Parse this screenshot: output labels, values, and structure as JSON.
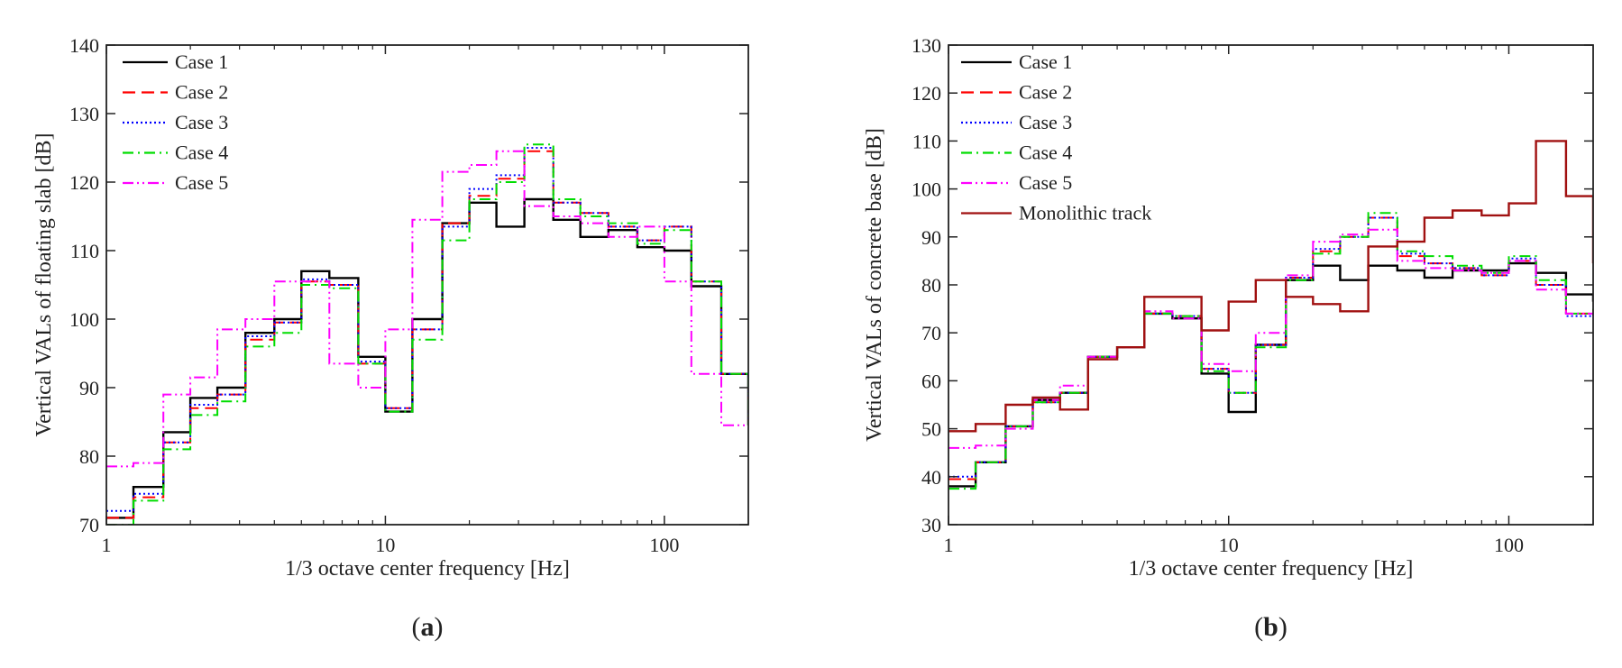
{
  "chart_data": [
    {
      "panel": "a",
      "caption": "(a)",
      "caption_letter": "a",
      "type": "line",
      "step": true,
      "xscale": "log",
      "xlabel": "1/3 octave center frequency [Hz]",
      "ylabel": "Vertical VALs of floating slab [dB]",
      "xlim": [
        1,
        200
      ],
      "ylim": [
        70,
        140
      ],
      "xticks": [
        1,
        10,
        100
      ],
      "xtick_labels": [
        "1",
        "10",
        "100"
      ],
      "yticks": [
        70,
        80,
        90,
        100,
        110,
        120,
        130,
        140
      ],
      "ytick_labels": [
        "70",
        "80",
        "90",
        "100",
        "110",
        "120",
        "130",
        "140"
      ],
      "legend_position": "top-left",
      "x": [
        1,
        1.25,
        1.6,
        2,
        2.5,
        3.15,
        4,
        5,
        6.3,
        8,
        10,
        12.5,
        16,
        20,
        25,
        31.5,
        40,
        50,
        63,
        80,
        100,
        125,
        160,
        200
      ],
      "series": [
        {
          "name": "Case 1",
          "color": "#000000",
          "dash": "solid",
          "values": [
            71,
            75.5,
            83.5,
            88.5,
            90,
            98,
            100,
            107,
            106,
            94.5,
            86.5,
            100,
            114,
            117,
            113.5,
            117.5,
            114.5,
            112,
            113,
            110.5,
            110,
            104.8,
            92,
            84.5
          ]
        },
        {
          "name": "Case 2",
          "color": "#ff0000",
          "dash": "dashed",
          "values": [
            71,
            74,
            82,
            87,
            89,
            97,
            99.5,
            105.5,
            105,
            93.5,
            87,
            98.5,
            114,
            118,
            120.5,
            124.5,
            117,
            115.5,
            113.5,
            111.5,
            113.5,
            105.5,
            92,
            84.5
          ]
        },
        {
          "name": "Case 3",
          "color": "#0000ff",
          "dash": "dotted",
          "values": [
            72,
            74.5,
            82,
            87.5,
            89,
            97.5,
            99.5,
            105.8,
            105,
            93.8,
            87,
            98.5,
            113.5,
            119,
            121,
            125,
            117,
            115.5,
            113.5,
            111.5,
            113.5,
            105.5,
            92,
            84.5
          ]
        },
        {
          "name": "Case 4",
          "color": "#00dd00",
          "dash": "dashdot",
          "values": [
            70,
            73.5,
            81,
            86,
            88,
            96,
            98,
            105,
            104.5,
            93.5,
            86.5,
            97,
            111.5,
            117.5,
            120,
            125.5,
            117.5,
            115,
            114,
            111,
            113,
            105.5,
            92,
            84.5
          ]
        },
        {
          "name": "Case 5",
          "color": "#ff00ff",
          "dash": "dashdotdot",
          "values": [
            78.5,
            79,
            89,
            91.5,
            98.5,
            100,
            105.5,
            105.5,
            93.5,
            90,
            98.5,
            114.5,
            121.5,
            122.5,
            124.5,
            116.5,
            115,
            114,
            112,
            113.5,
            105.5,
            92,
            84.5,
            84.5
          ]
        }
      ]
    },
    {
      "panel": "b",
      "caption": "(b)",
      "caption_letter": "b",
      "type": "line",
      "step": true,
      "xscale": "log",
      "xlabel": "1/3 octave center frequency [Hz]",
      "ylabel": "Vertical VALs of concrete base [dB]",
      "xlim": [
        1,
        200
      ],
      "ylim": [
        30,
        130
      ],
      "xticks": [
        1,
        10,
        100
      ],
      "xtick_labels": [
        "1",
        "10",
        "100"
      ],
      "yticks": [
        30,
        40,
        50,
        60,
        70,
        80,
        90,
        100,
        110,
        120,
        130
      ],
      "ytick_labels": [
        "30",
        "40",
        "50",
        "60",
        "70",
        "80",
        "90",
        "100",
        "110",
        "120",
        "130"
      ],
      "legend_position": "top-left",
      "x": [
        1,
        1.25,
        1.6,
        2,
        2.5,
        3.15,
        4,
        5,
        6.3,
        8,
        10,
        12.5,
        16,
        20,
        25,
        31.5,
        40,
        50,
        63,
        80,
        100,
        125,
        160,
        200
      ],
      "series": [
        {
          "name": "Case 1",
          "color": "#000000",
          "dash": "solid",
          "values": [
            38,
            43,
            50.5,
            56,
            57.5,
            65,
            67,
            74,
            73,
            61.5,
            53.5,
            67.5,
            81,
            84,
            81,
            84,
            83,
            81.5,
            83,
            83,
            84.5,
            82.5,
            78,
            76.5
          ]
        },
        {
          "name": "Case 2",
          "color": "#ff0000",
          "dash": "dashed",
          "values": [
            39.5,
            43,
            50.5,
            55.5,
            57.5,
            65,
            67,
            74,
            73.5,
            62.5,
            57.5,
            67.5,
            81.5,
            87,
            90,
            94,
            86,
            84.5,
            83.5,
            82,
            85,
            80,
            74,
            74.5
          ]
        },
        {
          "name": "Case 3",
          "color": "#0000ff",
          "dash": "dotted",
          "values": [
            40,
            43,
            50.5,
            55.5,
            57.5,
            65,
            67,
            74,
            73.5,
            62.5,
            57.5,
            67.5,
            81.5,
            87.5,
            90,
            94,
            86.5,
            84.5,
            83.5,
            82,
            85.5,
            80,
            73.5,
            74.5
          ]
        },
        {
          "name": "Case 4",
          "color": "#00dd00",
          "dash": "dashdot",
          "values": [
            37.5,
            43,
            50.5,
            55.5,
            57.5,
            65,
            67,
            74,
            73.5,
            62,
            57.5,
            67,
            81,
            86.5,
            90,
            95,
            87,
            86,
            84,
            82.5,
            86,
            81,
            74,
            75
          ]
        },
        {
          "name": "Case 5",
          "color": "#ff00ff",
          "dash": "dashdotdot",
          "values": [
            46,
            46.5,
            50,
            56,
            59,
            65,
            67,
            74.5,
            73,
            63.5,
            62,
            70,
            82,
            89,
            90.5,
            91.5,
            85,
            83.5,
            83,
            82.5,
            85,
            79,
            74,
            74.5
          ]
        },
        {
          "name": "Monolithic track",
          "color": "#a01010",
          "dash": "solid",
          "values": [
            49.5,
            51,
            55,
            56.5,
            54,
            64.5,
            67,
            77.5,
            77.5,
            70.5,
            76.5,
            81,
            77.5,
            76,
            74.5,
            88,
            89,
            94,
            95.5,
            94.5,
            97,
            110,
            98.5,
            84.5
          ]
        }
      ]
    }
  ]
}
